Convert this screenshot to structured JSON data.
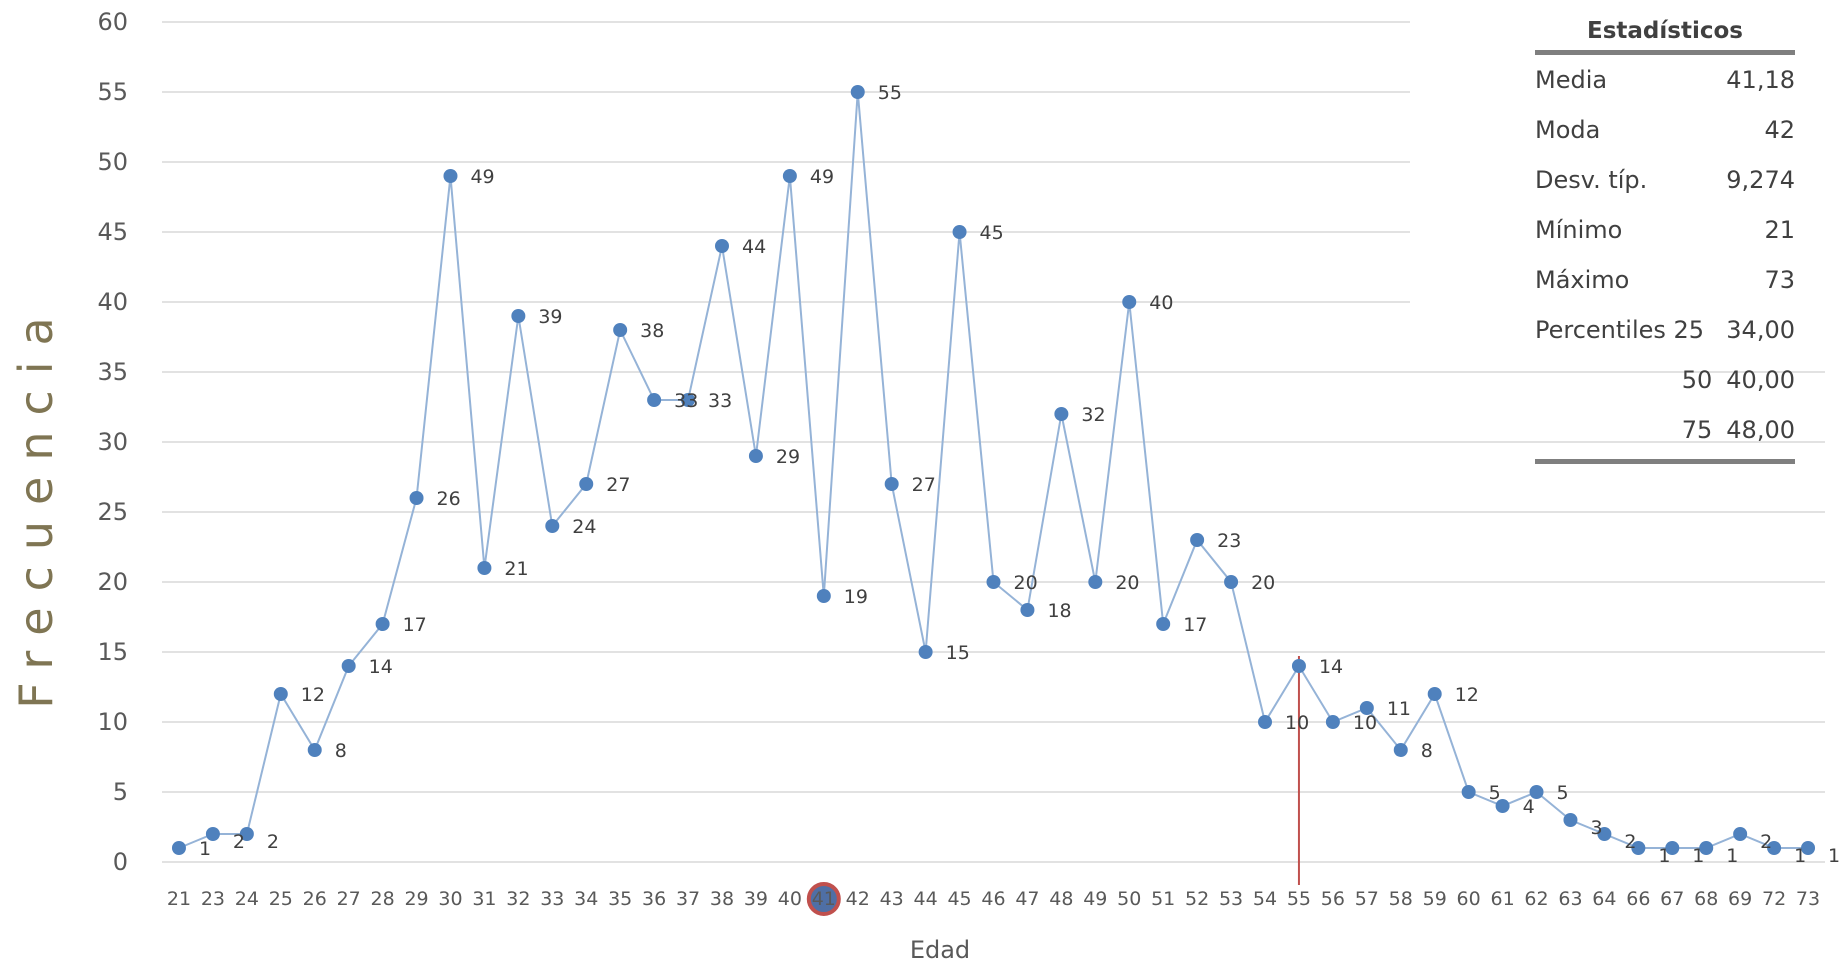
{
  "chart_data": {
    "type": "line",
    "title": "",
    "xlabel": "Edad",
    "ylabel": "Frecuencia",
    "ylim": [
      0,
      60
    ],
    "yticks": [
      "0",
      "5",
      "10",
      "15",
      "20",
      "25",
      "30",
      "35",
      "40",
      "45",
      "50",
      "55",
      "60"
    ],
    "categories": [
      "21",
      "23",
      "24",
      "25",
      "26",
      "27",
      "28",
      "29",
      "30",
      "31",
      "32",
      "33",
      "34",
      "35",
      "36",
      "37",
      "38",
      "39",
      "40",
      "41",
      "42",
      "43",
      "44",
      "45",
      "46",
      "47",
      "48",
      "49",
      "50",
      "51",
      "52",
      "53",
      "54",
      "55",
      "56",
      "57",
      "58",
      "59",
      "60",
      "61",
      "62",
      "63",
      "64",
      "66",
      "67",
      "68",
      "69",
      "72",
      "73"
    ],
    "values": [
      1,
      2,
      2,
      12,
      8,
      14,
      17,
      26,
      49,
      21,
      39,
      24,
      27,
      38,
      33,
      33,
      44,
      29,
      49,
      19,
      55,
      27,
      15,
      45,
      20,
      18,
      32,
      20,
      40,
      17,
      23,
      20,
      10,
      14,
      10,
      11,
      8,
      12,
      5,
      4,
      5,
      3,
      2,
      1,
      1,
      1,
      2,
      1,
      1
    ],
    "grid": true,
    "legend": "none",
    "marker_line": {
      "category": "55",
      "color": "#c0504d"
    },
    "highlighted_category": "41",
    "colors": {
      "series": "#4f81bd",
      "line": "#95b3d7",
      "grid": "#d9d9d9",
      "marker_line": "#c0504d",
      "highlight": "#c0504d"
    }
  },
  "stats_table": {
    "title": "Estadísticos",
    "rows": [
      {
        "label": "Media",
        "value": "41,18"
      },
      {
        "label": "Moda",
        "value": "42"
      },
      {
        "label": "Desv. típ.",
        "value": "9,274"
      },
      {
        "label": "Mínimo",
        "value": "21"
      },
      {
        "label": "Máximo",
        "value": "73"
      },
      {
        "label": "Percentiles 25",
        "value": "34,00"
      },
      {
        "label": "50",
        "value": "40,00"
      },
      {
        "label": "75",
        "value": "48,00"
      }
    ]
  }
}
